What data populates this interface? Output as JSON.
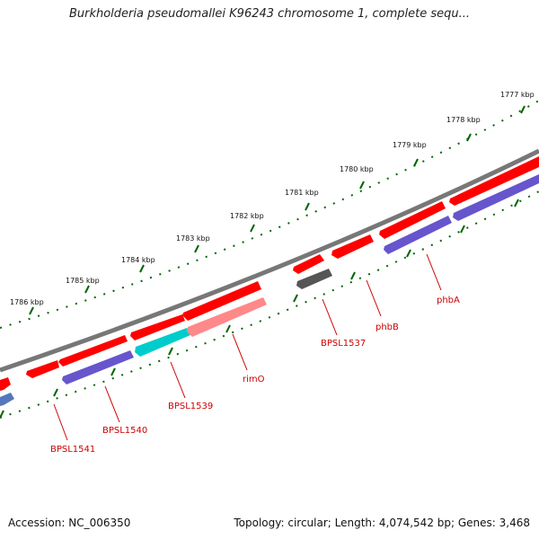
{
  "header": {
    "title": "Burkholderia pseudomallei K96243 chromosome 1, complete sequ..."
  },
  "footer": {
    "accession": "Accession: NC_006350",
    "topology": "Topology: circular; Length: 4,074,542 bp; Genes: 3,468"
  },
  "ruler": {
    "labels": [
      "1777 kbp",
      "1778 kbp",
      "1779 kbp",
      "1780 kbp",
      "1781 kbp",
      "1782 kbp",
      "1783 kbp",
      "1784 kbp",
      "1785 kbp",
      "1786 kbp"
    ]
  },
  "genes": [
    {
      "name": "BPSL1541"
    },
    {
      "name": "BPSL1540"
    },
    {
      "name": "BPSL1539"
    },
    {
      "name": "rimO"
    },
    {
      "name": "BPSL1537"
    },
    {
      "name": "phbB"
    },
    {
      "name": "phbA"
    }
  ],
  "colors": {
    "gene_red": "#ff0000",
    "gene_blue": "#6655cc",
    "gene_cyan": "#00cccc",
    "gene_pink": "#ff8888",
    "gene_gray": "#555555",
    "backbone": "#777777",
    "tick_green": "#006600",
    "label_red": "#cc0000"
  }
}
